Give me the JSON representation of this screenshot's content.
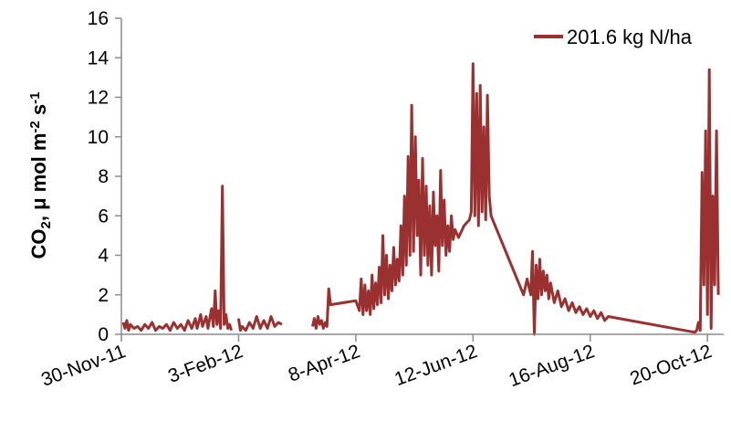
{
  "chart_data": {
    "type": "line",
    "title": "",
    "xlabel": "",
    "ylabel": {
      "parts": [
        {
          "text": "CO",
          "sub": false,
          "sup": false
        },
        {
          "text": "2",
          "sub": true,
          "sup": false
        },
        {
          "text": ", μ mol m",
          "sub": false,
          "sup": false
        },
        {
          "text": "-2",
          "sub": false,
          "sup": true
        },
        {
          "text": " s",
          "sub": false,
          "sup": false
        },
        {
          "text": "-1",
          "sub": false,
          "sup": true
        }
      ]
    },
    "ylim": [
      0,
      16
    ],
    "yticks": [
      "0",
      "2",
      "4",
      "6",
      "8",
      "10",
      "12",
      "14",
      "16"
    ],
    "xlim": [
      "2011-11-30",
      "2012-10-29"
    ],
    "xticks": [
      {
        "date": "2011-11-30",
        "label": "30-Nov-11"
      },
      {
        "date": "2012-02-03",
        "label": "3-Feb-12"
      },
      {
        "date": "2012-04-08",
        "label": "8-Apr-12"
      },
      {
        "date": "2012-06-12",
        "label": "12-Jun-12"
      },
      {
        "date": "2012-08-16",
        "label": "16-Aug-12"
      },
      {
        "date": "2012-10-20",
        "label": "20-Oct-12"
      }
    ],
    "grid": false,
    "legend": "top-right",
    "series": [
      {
        "name": "201.6 kg N/ha",
        "color": "#9b3030",
        "points": [
          [
            "2011-12-01",
            0.6
          ],
          [
            "2011-12-02",
            0.3
          ],
          [
            "2011-12-03",
            0.7
          ],
          [
            "2011-12-04",
            0.2
          ],
          [
            "2011-12-05",
            0.5
          ],
          [
            "2011-12-07",
            0.3
          ],
          [
            "2011-12-09",
            0.4
          ],
          [
            "2011-12-11",
            0.2
          ],
          [
            "2011-12-13",
            0.5
          ],
          [
            "2011-12-15",
            0.3
          ],
          [
            "2011-12-17",
            0.6
          ],
          [
            "2011-12-19",
            0.2
          ],
          [
            "2011-12-21",
            0.4
          ],
          [
            "2011-12-23",
            0.3
          ],
          [
            "2011-12-25",
            0.5
          ],
          [
            "2011-12-27",
            0.2
          ],
          [
            "2011-12-29",
            0.6
          ],
          [
            "2011-12-31",
            0.3
          ],
          [
            "2012-01-02",
            0.5
          ],
          [
            "2012-01-04",
            0.2
          ],
          [
            "2012-01-06",
            0.7
          ],
          [
            "2012-01-08",
            0.3
          ],
          [
            "2012-01-10",
            0.8
          ],
          [
            "2012-01-11",
            0.3
          ],
          [
            "2012-01-13",
            1.0
          ],
          [
            "2012-01-14",
            0.4
          ],
          [
            "2012-01-16",
            0.9
          ],
          [
            "2012-01-17",
            0.3
          ],
          [
            "2012-01-19",
            1.3
          ],
          [
            "2012-01-20",
            0.4
          ],
          [
            "2012-01-21",
            2.2
          ],
          [
            "2012-01-22",
            0.5
          ],
          [
            "2012-01-23",
            1.2
          ],
          [
            "2012-01-24",
            0.3
          ],
          [
            "2012-01-25",
            7.5
          ],
          [
            "2012-01-26",
            0.5
          ],
          [
            "2012-01-27",
            1.0
          ],
          [
            "2012-01-28",
            0.3
          ],
          [
            "2012-01-29",
            0.5
          ],
          [
            "2012-01-30",
            0.2
          ],
          [
            "2012-02-01",
            null
          ],
          [
            "2012-02-03",
            0.8
          ],
          [
            "2012-02-04",
            0.2
          ],
          [
            "2012-02-05",
            0.4
          ],
          [
            "2012-02-07",
            0.2
          ],
          [
            "2012-02-09",
            0.6
          ],
          [
            "2012-02-11",
            0.3
          ],
          [
            "2012-02-13",
            0.9
          ],
          [
            "2012-02-15",
            0.3
          ],
          [
            "2012-02-17",
            0.7
          ],
          [
            "2012-02-19",
            0.3
          ],
          [
            "2012-02-21",
            0.9
          ],
          [
            "2012-02-23",
            0.4
          ],
          [
            "2012-02-25",
            0.6
          ],
          [
            "2012-02-27",
            0.5
          ],
          [
            "2012-02-28",
            null
          ],
          [
            "2012-03-15",
            0.4
          ],
          [
            "2012-03-16",
            0.8
          ],
          [
            "2012-03-17",
            0.3
          ],
          [
            "2012-03-18",
            0.9
          ],
          [
            "2012-03-19",
            0.5
          ],
          [
            "2012-03-20",
            0.7
          ],
          [
            "2012-03-21",
            0.3
          ],
          [
            "2012-03-22",
            0.6
          ],
          [
            "2012-03-23",
            0.4
          ],
          [
            "2012-03-24",
            2.3
          ],
          [
            "2012-03-25",
            1.5
          ],
          [
            "2012-04-08",
            1.7
          ],
          [
            "2012-04-10",
            1.2
          ],
          [
            "2012-04-11",
            2.8
          ],
          [
            "2012-04-12",
            1.0
          ],
          [
            "2012-04-13",
            2.5
          ],
          [
            "2012-04-14",
            1.2
          ],
          [
            "2012-04-15",
            2.2
          ],
          [
            "2012-04-16",
            1.0
          ],
          [
            "2012-04-17",
            3.0
          ],
          [
            "2012-04-18",
            1.3
          ],
          [
            "2012-04-19",
            2.6
          ],
          [
            "2012-04-20",
            1.5
          ],
          [
            "2012-04-21",
            3.4
          ],
          [
            "2012-04-22",
            1.6
          ],
          [
            "2012-04-23",
            5.0
          ],
          [
            "2012-04-24",
            2.0
          ],
          [
            "2012-04-25",
            4.0
          ],
          [
            "2012-04-26",
            1.8
          ],
          [
            "2012-04-27",
            3.5
          ],
          [
            "2012-04-28",
            2.2
          ],
          [
            "2012-04-29",
            4.4
          ],
          [
            "2012-04-30",
            2.5
          ],
          [
            "2012-05-01",
            3.8
          ],
          [
            "2012-05-02",
            2.7
          ],
          [
            "2012-05-03",
            5.5
          ],
          [
            "2012-05-04",
            3.0
          ],
          [
            "2012-05-05",
            7.0
          ],
          [
            "2012-05-06",
            3.5
          ],
          [
            "2012-05-07",
            9.0
          ],
          [
            "2012-05-08",
            4.0
          ],
          [
            "2012-05-09",
            11.6
          ],
          [
            "2012-05-10",
            4.2
          ],
          [
            "2012-05-11",
            10.0
          ],
          [
            "2012-05-12",
            5.0
          ],
          [
            "2012-05-13",
            7.8
          ],
          [
            "2012-05-14",
            3.0
          ],
          [
            "2012-05-15",
            8.9
          ],
          [
            "2012-05-16",
            4.0
          ],
          [
            "2012-05-17",
            7.5
          ],
          [
            "2012-05-18",
            3.5
          ],
          [
            "2012-05-19",
            6.5
          ],
          [
            "2012-05-20",
            3.0
          ],
          [
            "2012-05-21",
            7.2
          ],
          [
            "2012-05-22",
            4.5
          ],
          [
            "2012-05-23",
            6.0
          ],
          [
            "2012-05-24",
            3.2
          ],
          [
            "2012-05-25",
            8.3
          ],
          [
            "2012-05-26",
            4.5
          ],
          [
            "2012-05-27",
            6.8
          ],
          [
            "2012-05-28",
            4.0
          ],
          [
            "2012-05-29",
            5.5
          ],
          [
            "2012-05-30",
            4.2
          ],
          [
            "2012-05-31",
            6.0
          ],
          [
            "2012-06-01",
            4.8
          ],
          [
            "2012-06-02",
            5.3
          ],
          [
            "2012-06-04",
            4.9
          ],
          [
            "2012-06-07",
            5.5
          ],
          [
            "2012-06-10",
            5.8
          ],
          [
            "2012-06-11",
            6.2
          ],
          [
            "2012-06-12",
            13.7
          ],
          [
            "2012-06-13",
            6.0
          ],
          [
            "2012-06-14",
            12.2
          ],
          [
            "2012-06-15",
            5.5
          ],
          [
            "2012-06-16",
            12.6
          ],
          [
            "2012-06-17",
            6.2
          ],
          [
            "2012-06-18",
            10.5
          ],
          [
            "2012-06-19",
            5.8
          ],
          [
            "2012-06-20",
            12.1
          ],
          [
            "2012-06-21",
            7.0
          ],
          [
            "2012-06-22",
            6.0
          ],
          [
            "2012-07-10",
            2.0
          ],
          [
            "2012-07-12",
            2.8
          ],
          [
            "2012-07-14",
            2.0
          ],
          [
            "2012-07-15",
            4.2
          ],
          [
            "2012-07-16",
            0.0
          ],
          [
            "2012-07-17",
            3.5
          ],
          [
            "2012-07-18",
            1.8
          ],
          [
            "2012-07-19",
            3.8
          ],
          [
            "2012-07-20",
            2.0
          ],
          [
            "2012-07-21",
            3.2
          ],
          [
            "2012-07-22",
            2.2
          ],
          [
            "2012-07-23",
            3.0
          ],
          [
            "2012-07-24",
            1.8
          ],
          [
            "2012-07-25",
            2.6
          ],
          [
            "2012-07-27",
            1.6
          ],
          [
            "2012-07-29",
            2.2
          ],
          [
            "2012-07-31",
            1.4
          ],
          [
            "2012-08-02",
            1.8
          ],
          [
            "2012-08-04",
            1.2
          ],
          [
            "2012-08-06",
            1.6
          ],
          [
            "2012-08-08",
            1.1
          ],
          [
            "2012-08-10",
            1.4
          ],
          [
            "2012-08-12",
            1.0
          ],
          [
            "2012-08-14",
            1.3
          ],
          [
            "2012-08-16",
            0.9
          ],
          [
            "2012-08-18",
            1.2
          ],
          [
            "2012-08-20",
            0.8
          ],
          [
            "2012-08-22",
            1.1
          ],
          [
            "2012-08-24",
            0.7
          ],
          [
            "2012-08-26",
            0.9
          ],
          [
            "2012-10-13",
            0.1
          ],
          [
            "2012-10-14",
            0.2
          ],
          [
            "2012-10-15",
            0.6
          ],
          [
            "2012-10-16",
            0.2
          ],
          [
            "2012-10-17",
            8.2
          ],
          [
            "2012-10-18",
            2.5
          ],
          [
            "2012-10-19",
            10.3
          ],
          [
            "2012-10-20",
            1.0
          ],
          [
            "2012-10-21",
            13.4
          ],
          [
            "2012-10-22",
            0.3
          ],
          [
            "2012-10-23",
            7.0
          ],
          [
            "2012-10-24",
            2.5
          ],
          [
            "2012-10-25",
            10.3
          ],
          [
            "2012-10-26",
            2.0
          ]
        ]
      }
    ]
  }
}
